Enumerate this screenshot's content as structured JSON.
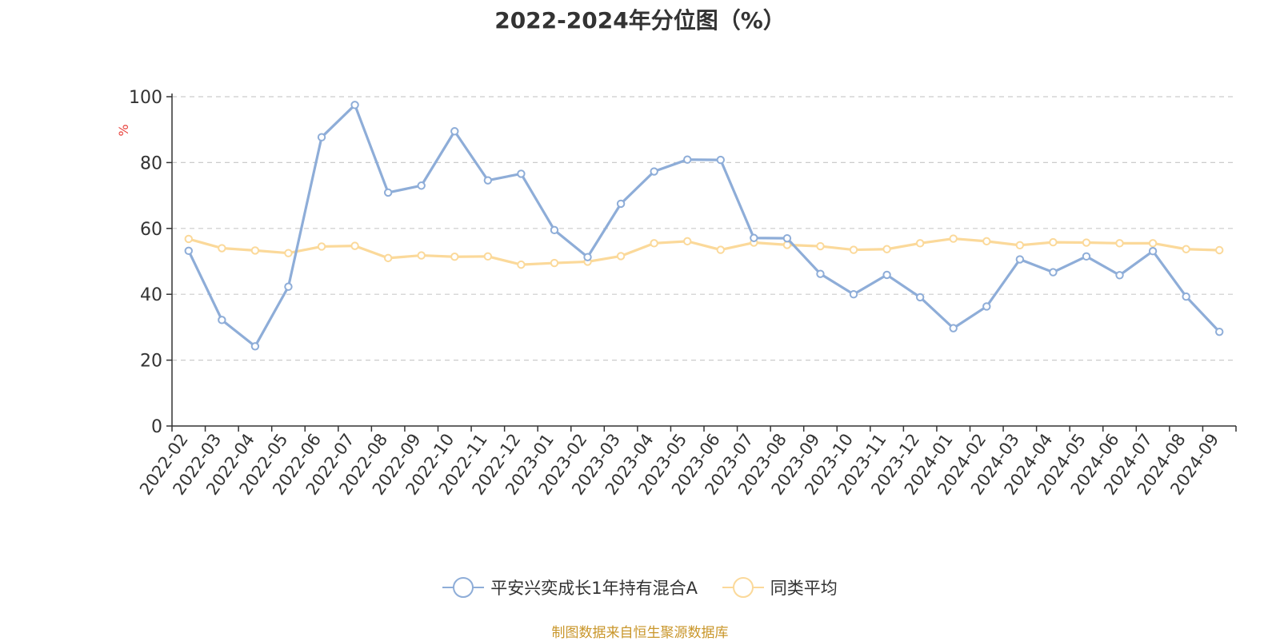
{
  "chart_data": {
    "type": "line",
    "title": "2022-2024年分位图（%）",
    "ylabel": "%",
    "ylim": [
      0,
      100
    ],
    "yticks": [
      0,
      20,
      40,
      60,
      80,
      100
    ],
    "grid": true,
    "legend_position": "bottom",
    "x": [
      "2022-02",
      "2022-03",
      "2022-04",
      "2022-05",
      "2022-06",
      "2022-07",
      "2022-08",
      "2022-09",
      "2022-10",
      "2022-11",
      "2022-12",
      "2023-01",
      "2023-02",
      "2023-03",
      "2023-04",
      "2023-05",
      "2023-06",
      "2023-07",
      "2023-08",
      "2023-09",
      "2023-10",
      "2023-11",
      "2023-12",
      "2024-01",
      "2024-02",
      "2024-03",
      "2024-04",
      "2024-05",
      "2024-06",
      "2024-07",
      "2024-08",
      "2024-09"
    ],
    "series": [
      {
        "name": "平安兴奕成长1年持有混合A",
        "color": "#8eadd8",
        "values": [
          53.2,
          32.2,
          24.2,
          42.3,
          87.7,
          97.5,
          70.9,
          73.0,
          89.5,
          74.6,
          76.6,
          59.5,
          51.3,
          67.5,
          77.3,
          80.9,
          80.8,
          57.1,
          57.0,
          46.2,
          40.0,
          45.9,
          39.1,
          29.7,
          36.3,
          50.6,
          46.7,
          51.5,
          45.8,
          53.1,
          39.3,
          28.6
        ]
      },
      {
        "name": "同类平均",
        "color": "#fbd99a",
        "values": [
          56.8,
          54.0,
          53.3,
          52.5,
          54.5,
          54.7,
          51.0,
          51.8,
          51.4,
          51.5,
          49.0,
          49.5,
          49.9,
          51.6,
          55.5,
          56.1,
          53.5,
          55.7,
          55.0,
          54.6,
          53.5,
          53.7,
          55.5,
          56.9,
          56.1,
          54.9,
          55.8,
          55.7,
          55.5,
          55.5,
          53.7,
          53.4
        ]
      }
    ]
  },
  "footer": {
    "source": "制图数据来自恒生聚源数据库"
  }
}
